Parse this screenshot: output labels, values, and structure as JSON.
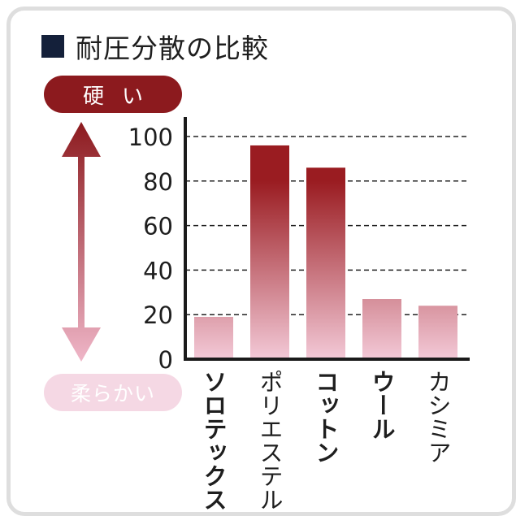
{
  "title": "耐圧分散の比較",
  "scale": {
    "hard_label": "硬い",
    "soft_label": "柔らかい"
  },
  "colors": {
    "dark": "#9a1c21",
    "light": "#f3c9d7",
    "hard_pill": "#8c1a1e",
    "soft_pill": "#f5d8e4"
  },
  "chart_data": {
    "type": "bar",
    "categories": [
      "ソロテックス",
      "ポリエステル",
      "コットン",
      "ウール",
      "カシミア"
    ],
    "bold_categories": [
      true,
      false,
      true,
      true,
      false
    ],
    "values": [
      19,
      96,
      86,
      27,
      24
    ],
    "ylim": [
      0,
      100
    ],
    "yticks": [
      0,
      20,
      40,
      60,
      80,
      100
    ],
    "grid": true
  }
}
